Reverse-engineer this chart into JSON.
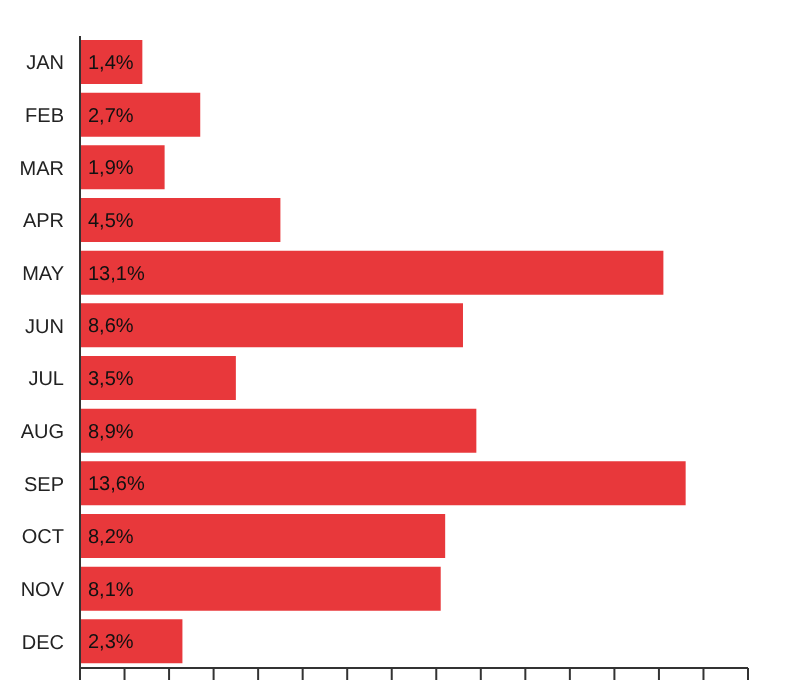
{
  "chart_data": {
    "type": "bar",
    "orientation": "horizontal",
    "categories": [
      "JAN",
      "FEB",
      "MAR",
      "APR",
      "MAY",
      "JUN",
      "JUL",
      "AUG",
      "SEP",
      "OCT",
      "NOV",
      "DEC"
    ],
    "values": [
      1.4,
      2.7,
      1.9,
      4.5,
      13.1,
      8.6,
      3.5,
      8.9,
      13.6,
      8.2,
      8.1,
      2.3
    ],
    "value_labels": [
      "1,4%",
      "2,7%",
      "1,9%",
      "4,5%",
      "13,1%",
      "8,6%",
      "3,5%",
      "8,9%",
      "13,6%",
      "8,2%",
      "8,1%",
      "2,3%"
    ],
    "color": "#e8383b",
    "xlim": [
      0,
      15
    ],
    "xticks": [
      {
        "value": 0,
        "label": null
      },
      {
        "value": 1,
        "label": null
      },
      {
        "value": 2,
        "label": null
      },
      {
        "value": 3,
        "label": null
      },
      {
        "value": 4,
        "label": null
      },
      {
        "value": 5,
        "label": null
      },
      {
        "value": 6,
        "label": null
      },
      {
        "value": 7,
        "label": null
      },
      {
        "value": 8,
        "label": null
      },
      {
        "value": 9,
        "label": null
      },
      {
        "value": 10,
        "label": null
      },
      {
        "value": 11,
        "label": null
      },
      {
        "value": 12,
        "label": null
      },
      {
        "value": 13,
        "label": null
      },
      {
        "value": 14,
        "label": null
      },
      {
        "value": 15,
        "label": null
      }
    ],
    "tick_labels": "y",
    "grid": false,
    "legend": false
  }
}
